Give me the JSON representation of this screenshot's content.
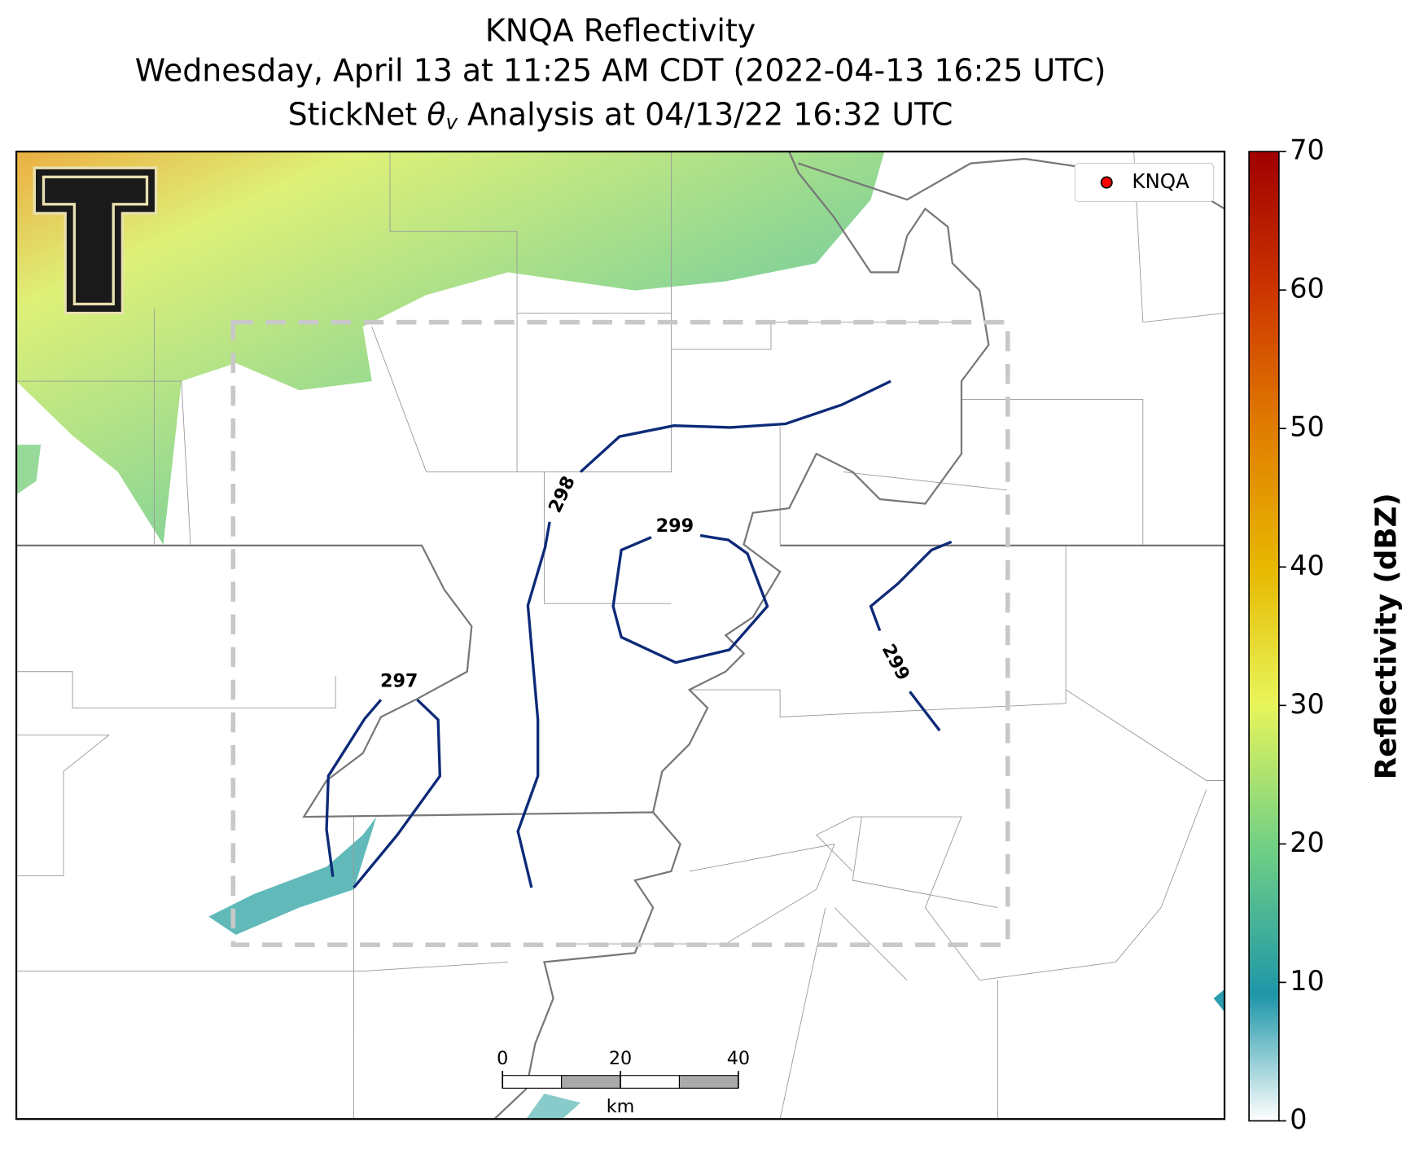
{
  "header": {
    "title_lines": [
      "KNQA Reflectivity",
      "Wednesday, April 13 at 11:25 AM CDT (2022-04-13 16:25 UTC)"
    ],
    "subtitle_parts": [
      "StickNet",
      "θ",
      "v",
      "Analysis at 04/13/22 16:32 UTC"
    ]
  },
  "legend": {
    "label": "KNQA",
    "color": "#ff0000"
  },
  "contours": [
    {
      "label": "297"
    },
    {
      "label": "298"
    },
    {
      "label": "299"
    },
    {
      "label": "299"
    }
  ],
  "contour_color": "#0d2a78",
  "scale_bar": {
    "ticks": [
      0,
      20,
      40
    ],
    "unit": "km"
  },
  "colorbar": {
    "label": "Reflectivity (dBZ)",
    "lim": [
      0,
      70
    ],
    "ticks": [
      0,
      10,
      20,
      30,
      40,
      50,
      60,
      70
    ]
  }
}
